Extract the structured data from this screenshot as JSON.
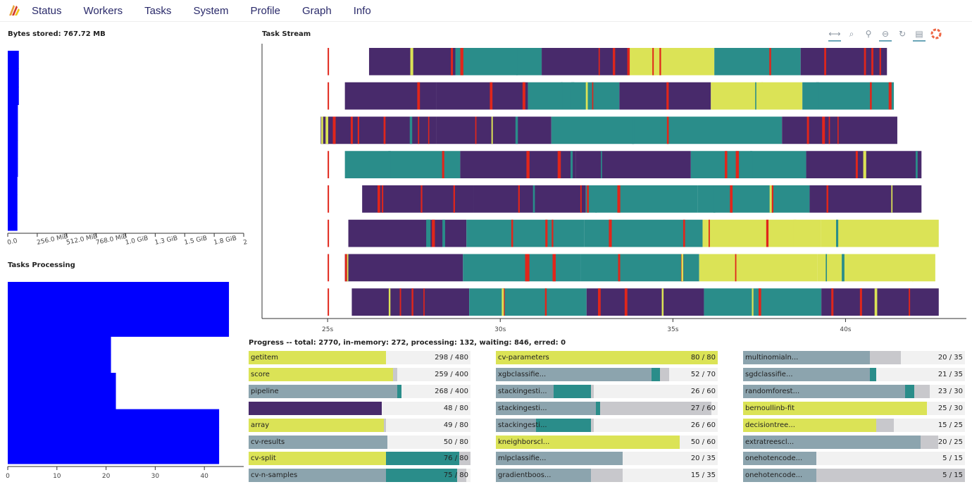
{
  "nav": {
    "items": [
      "Status",
      "Workers",
      "Tasks",
      "System",
      "Profile",
      "Graph",
      "Info"
    ]
  },
  "icons": {
    "toolbar": [
      "pan-icon",
      "box-zoom-icon",
      "wheel-zoom-icon",
      "zoom-out-icon",
      "reset-icon",
      "hover-icon",
      "bokeh-logo-icon"
    ]
  },
  "colors": {
    "bar_blue": "#0000ff",
    "purple": "#482a6b",
    "teal": "#2a8d8a",
    "yellow": "#dbe356",
    "red": "#e0261b",
    "gray": "#c8c8cc",
    "slate": "#8ca4ae"
  },
  "bytes": {
    "title": "Bytes stored: 767.72 MB",
    "ticks": [
      "0.0",
      "256.0 MiB",
      "512.0 MiB",
      "768.0 MiB",
      "1.0 GiB",
      "1.3 GiB",
      "1.5 GiB",
      "1.8 GiB",
      "2"
    ],
    "values_gib": [
      0.094,
      0.094,
      0.094,
      0.086,
      0.086,
      0.086,
      0.086,
      0.082,
      0.082,
      0.082
    ]
  },
  "processing": {
    "title": "Tasks Processing",
    "ticks": [
      "0",
      "10",
      "20",
      "30",
      "40"
    ],
    "xmax": 48,
    "values": [
      45,
      45,
      45,
      21,
      21,
      22,
      22,
      43,
      43,
      43
    ]
  },
  "stream": {
    "title": "Task Stream",
    "ticks": [
      "25s",
      "30s",
      "35s",
      "40s"
    ],
    "x_range": [
      23.1,
      43.5
    ],
    "rows": [
      {
        "start": 26.2,
        "end": 41.2,
        "pattern": "mixed"
      },
      {
        "start": 25.5,
        "end": 41.4,
        "pattern": "purple-start"
      },
      {
        "start": 24.8,
        "end": 41.5,
        "pattern": "purple-teal"
      },
      {
        "start": 25.5,
        "end": 42.2,
        "pattern": "teal-purple"
      },
      {
        "start": 26.0,
        "end": 42.2,
        "pattern": "purple-teal"
      },
      {
        "start": 25.6,
        "end": 42.7,
        "pattern": "purple-yellow"
      },
      {
        "start": 25.5,
        "end": 42.6,
        "pattern": "purple-yellow"
      },
      {
        "start": 25.7,
        "end": 42.7,
        "pattern": "purple-mixed"
      }
    ]
  },
  "progress": {
    "title": "Progress -- total: 2770, in-memory: 272, processing: 132, waiting: 846, erred: 0",
    "columns": [
      [
        {
          "name": "getitem",
          "count": "298 / 480",
          "memory": 0.62,
          "processing": 0.0,
          "waiting": 0.0,
          "color": "yellow"
        },
        {
          "name": "score",
          "count": "259 / 400",
          "memory": 0.65,
          "processing": 0.0,
          "waiting": 0.02,
          "color": "yellow"
        },
        {
          "name": "pipeline",
          "count": "268 / 400",
          "memory": 0.67,
          "processing": 0.02,
          "waiting": 0.0,
          "color": "slate"
        },
        {
          "name": "",
          "count": "48 / 80",
          "memory": 0.6,
          "processing": 0.0,
          "waiting": 0.0,
          "color": "purple"
        },
        {
          "name": "array",
          "count": "49 / 80",
          "memory": 0.61,
          "processing": 0.0,
          "waiting": 0.01,
          "color": "yellow"
        },
        {
          "name": "cv-results",
          "count": "50 / 80",
          "memory": 0.625,
          "processing": 0.0,
          "waiting": 0.0,
          "color": "slate"
        },
        {
          "name": "cv-split",
          "count": "76 / 80",
          "memory": 0.62,
          "processing": 0.33,
          "waiting": 0.05,
          "color": "yellow"
        },
        {
          "name": "cv-n-samples",
          "count": "75 / 80",
          "memory": 0.62,
          "processing": 0.32,
          "waiting": 0.04,
          "color": "slate"
        }
      ],
      [
        {
          "name": "cv-parameters",
          "count": "80 / 80",
          "memory": 1.0,
          "processing": 0.0,
          "waiting": 0.0,
          "color": "yellow"
        },
        {
          "name": "xgbclassifie...",
          "count": "52 / 70",
          "memory": 0.7,
          "processing": 0.04,
          "waiting": 0.04,
          "color": "slate"
        },
        {
          "name": "stackingesti...",
          "count": "26 / 60",
          "memory": 0.26,
          "processing": 0.17,
          "waiting": 0.01,
          "color": "slate"
        },
        {
          "name": "stackingesti...",
          "count": "27 / 60",
          "memory": 0.45,
          "processing": 0.02,
          "waiting": 0.5,
          "color": "slate"
        },
        {
          "name": "stackingesti...",
          "count": "26 / 60",
          "memory": 0.18,
          "processing": 0.25,
          "waiting": 0.01,
          "color": "slate"
        },
        {
          "name": "kneighborscl...",
          "count": "50 / 60",
          "memory": 0.83,
          "processing": 0.0,
          "waiting": 0.0,
          "color": "yellow"
        },
        {
          "name": "mlpclassifie...",
          "count": "20 / 35",
          "memory": 0.57,
          "processing": 0.0,
          "waiting": 0.0,
          "color": "slate"
        },
        {
          "name": "gradientboos...",
          "count": "15 / 35",
          "memory": 0.43,
          "processing": 0.0,
          "waiting": 0.14,
          "color": "slate"
        }
      ],
      [
        {
          "name": "multinomialn...",
          "count": "20 / 35",
          "memory": 0.57,
          "processing": 0.0,
          "waiting": 0.14,
          "color": "slate"
        },
        {
          "name": "sgdclassifie...",
          "count": "21 / 35",
          "memory": 0.57,
          "processing": 0.03,
          "waiting": 0.0,
          "color": "slate"
        },
        {
          "name": "randomforest...",
          "count": "23 / 30",
          "memory": 0.73,
          "processing": 0.04,
          "waiting": 0.07,
          "color": "slate"
        },
        {
          "name": "bernoullinb-fit",
          "count": "25 / 30",
          "memory": 0.83,
          "processing": 0.0,
          "waiting": 0.0,
          "color": "yellow"
        },
        {
          "name": "decisiontree...",
          "count": "15 / 25",
          "memory": 0.6,
          "processing": 0.0,
          "waiting": 0.08,
          "color": "yellow"
        },
        {
          "name": "extratreescl...",
          "count": "20 / 25",
          "memory": 0.8,
          "processing": 0.0,
          "waiting": 0.08,
          "color": "slate"
        },
        {
          "name": "onehotencode...",
          "count": "5 / 15",
          "memory": 0.33,
          "processing": 0.0,
          "waiting": 0.0,
          "color": "slate"
        },
        {
          "name": "onehotencode...",
          "count": "5 / 15",
          "memory": 0.33,
          "processing": 0.0,
          "waiting": 0.67,
          "color": "slate"
        }
      ]
    ]
  }
}
